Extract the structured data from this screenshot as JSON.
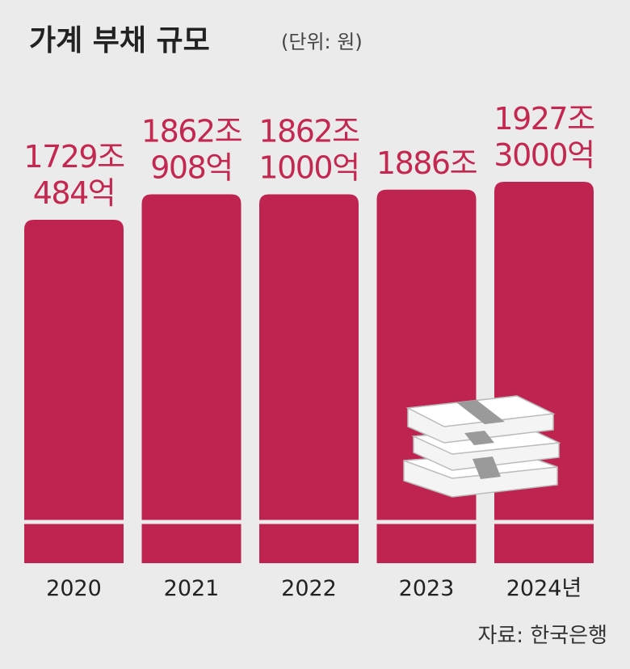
{
  "chart_data": {
    "type": "bar",
    "title": "가계 부채 규모",
    "subtitle": "(단위: 원)",
    "categories": [
      "2020",
      "2021",
      "2022",
      "2023",
      "2024년"
    ],
    "values": [
      1729.0484,
      1862.0908,
      1862.1,
      1886,
      1927.3
    ],
    "value_labels": [
      [
        "1729조",
        "484억"
      ],
      [
        "1862조",
        "908억"
      ],
      [
        "1862조",
        "1000억"
      ],
      [
        "1886조"
      ],
      [
        "1927조",
        "3000억"
      ]
    ],
    "color": "#be244f",
    "label_color": "#c4274f",
    "source": "자료: 한국은행"
  }
}
